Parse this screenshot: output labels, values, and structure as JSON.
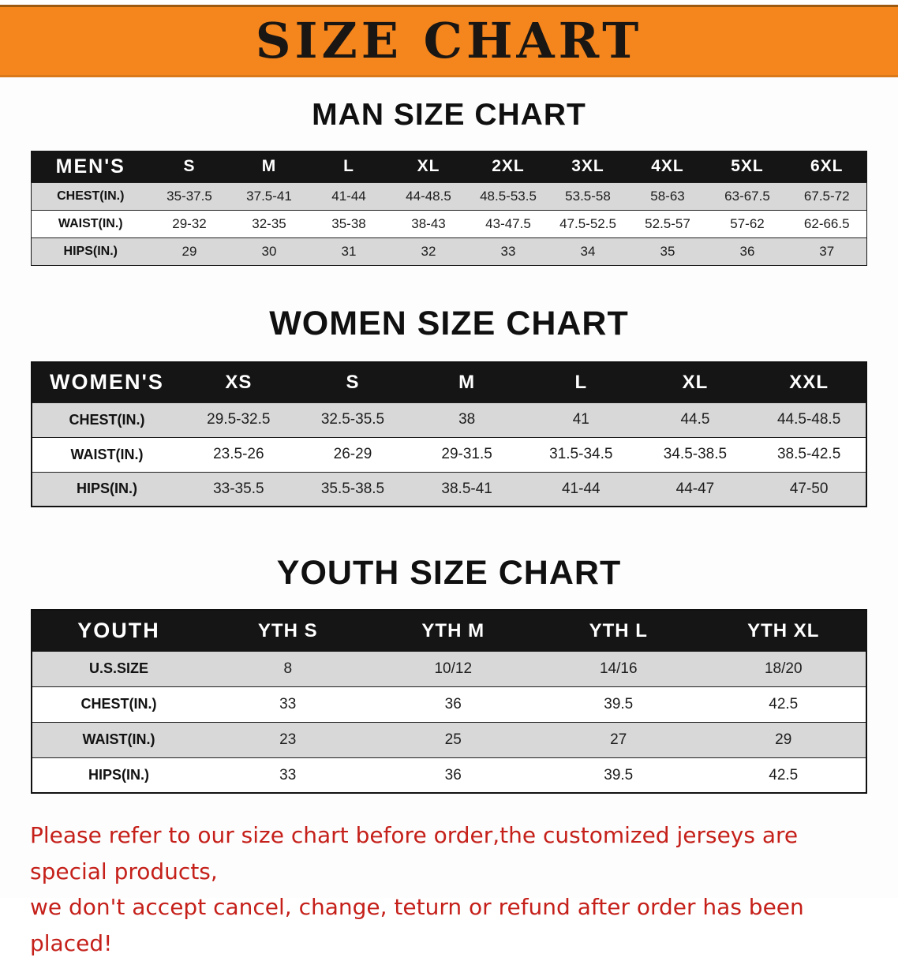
{
  "banner": {
    "title": "SIZE CHART",
    "bg_color": "#f5851d",
    "text_color": "#191613"
  },
  "colors": {
    "table_header_bg": "#151515",
    "row_stripe": "#d8d8d8",
    "disclaimer_red": "#c5201a"
  },
  "sections": {
    "men": {
      "heading": "MAN SIZE CHART",
      "table": {
        "header": [
          "MEN'S",
          "S",
          "M",
          "L",
          "XL",
          "2XL",
          "3XL",
          "4XL",
          "5XL",
          "6XL"
        ],
        "rows": [
          [
            "CHEST(IN.)",
            "35-37.5",
            "37.5-41",
            "41-44",
            "44-48.5",
            "48.5-53.5",
            "53.5-58",
            "58-63",
            "63-67.5",
            "67.5-72"
          ],
          [
            "WAIST(IN.)",
            "29-32",
            "32-35",
            "35-38",
            "38-43",
            "43-47.5",
            "47.5-52.5",
            "52.5-57",
            "57-62",
            "62-66.5"
          ],
          [
            "HIPS(IN.)",
            "29",
            "30",
            "31",
            "32",
            "33",
            "34",
            "35",
            "36",
            "37"
          ]
        ]
      }
    },
    "women": {
      "heading": "WOMEN SIZE CHART",
      "table": {
        "header": [
          "WOMEN'S",
          "XS",
          "S",
          "M",
          "L",
          "XL",
          "XXL"
        ],
        "rows": [
          [
            "CHEST(IN.)",
            "29.5-32.5",
            "32.5-35.5",
            "38",
            "41",
            "44.5",
            "44.5-48.5"
          ],
          [
            "WAIST(IN.)",
            "23.5-26",
            "26-29",
            "29-31.5",
            "31.5-34.5",
            "34.5-38.5",
            "38.5-42.5"
          ],
          [
            "HIPS(IN.)",
            "33-35.5",
            "35.5-38.5",
            "38.5-41",
            "41-44",
            "44-47",
            "47-50"
          ]
        ]
      }
    },
    "youth": {
      "heading": "YOUTH SIZE CHART",
      "table": {
        "header": [
          "YOUTH",
          "YTH S",
          "YTH M",
          "YTH L",
          "YTH XL"
        ],
        "rows": [
          [
            "U.S.SIZE",
            "8",
            "10/12",
            "14/16",
            "18/20"
          ],
          [
            "CHEST(IN.)",
            "33",
            "36",
            "39.5",
            "42.5"
          ],
          [
            "WAIST(IN.)",
            "23",
            "25",
            "27",
            "29"
          ],
          [
            "HIPS(IN.)",
            "33",
            "36",
            "39.5",
            "42.5"
          ]
        ]
      }
    }
  },
  "disclaimer": {
    "line1": "Please refer to our size chart before order,the customized jerseys are special products,",
    "line2": "we don't accept cancel, change, teturn or refund after order has been placed!"
  }
}
